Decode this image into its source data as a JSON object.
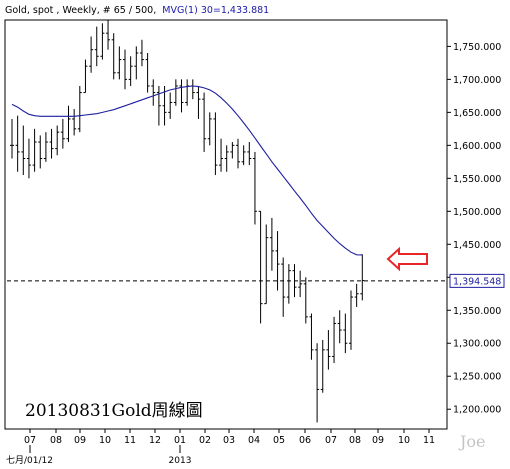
{
  "header": {
    "prefix": "Gold, spot , Weekly, # 65 / 500,",
    "indicator": "MVG(1) 30=1,433.881"
  },
  "annotation": "20130831Gold周線圖",
  "watermark": "Joe",
  "colors": {
    "bars": "#000000",
    "ma_line": "#1f1fa0",
    "arrow": "#e8262a",
    "grid": "#000000"
  },
  "chart_data": {
    "type": "ohlc",
    "title": "Gold, spot , Weekly, # 65 / 500,",
    "ylim": [
      1170,
      1790
    ],
    "y_ticks": [
      "1,200.000",
      "1,250.000",
      "1,300.000",
      "1,350.000",
      "1,400.000",
      "1,450.000",
      "1,500.000",
      "1,550.000",
      "1,600.000",
      "1,650.000",
      "1,700.000",
      "1,750.000"
    ],
    "y_tick_values": [
      1200,
      1250,
      1300,
      1350,
      1400,
      1450,
      1500,
      1550,
      1600,
      1650,
      1700,
      1750
    ],
    "x_ticks": [
      "07",
      "08",
      "09",
      "10",
      "11",
      "12",
      "01",
      "02",
      "03",
      "04",
      "05",
      "06",
      "07",
      "08",
      "09",
      "10",
      "11"
    ],
    "x_sublabels": [
      "七月/01/12",
      "2013"
    ],
    "current_price_label": "1,394.548",
    "current_price": 1394.548,
    "moving_average": {
      "name": "MVG(1) 30",
      "last_value": 1433.881
    },
    "bars": [
      [
        1600,
        1640,
        1580,
        1600
      ],
      [
        1600,
        1645,
        1560,
        1590
      ],
      [
        1590,
        1630,
        1555,
        1580
      ],
      [
        1580,
        1610,
        1550,
        1570
      ],
      [
        1570,
        1625,
        1560,
        1605
      ],
      [
        1605,
        1615,
        1565,
        1580
      ],
      [
        1580,
        1620,
        1575,
        1605
      ],
      [
        1605,
        1625,
        1580,
        1595
      ],
      [
        1595,
        1630,
        1585,
        1620
      ],
      [
        1620,
        1640,
        1595,
        1610
      ],
      [
        1610,
        1660,
        1605,
        1640
      ],
      [
        1640,
        1655,
        1615,
        1625
      ],
      [
        1625,
        1690,
        1620,
        1680
      ],
      [
        1680,
        1730,
        1680,
        1720
      ],
      [
        1720,
        1765,
        1710,
        1745
      ],
      [
        1745,
        1780,
        1720,
        1735
      ],
      [
        1735,
        1785,
        1730,
        1770
      ],
      [
        1770,
        1790,
        1745,
        1760
      ],
      [
        1760,
        1770,
        1700,
        1710
      ],
      [
        1710,
        1750,
        1700,
        1730
      ],
      [
        1730,
        1745,
        1685,
        1700
      ],
      [
        1700,
        1735,
        1690,
        1720
      ],
      [
        1720,
        1750,
        1700,
        1740
      ],
      [
        1740,
        1760,
        1720,
        1730
      ],
      [
        1730,
        1740,
        1680,
        1690
      ],
      [
        1690,
        1700,
        1660,
        1680
      ],
      [
        1680,
        1690,
        1630,
        1660
      ],
      [
        1660,
        1690,
        1630,
        1650
      ],
      [
        1650,
        1680,
        1640,
        1665
      ],
      [
        1665,
        1700,
        1660,
        1690
      ],
      [
        1690,
        1700,
        1650,
        1665
      ],
      [
        1665,
        1700,
        1660,
        1690
      ],
      [
        1690,
        1700,
        1670,
        1680
      ],
      [
        1680,
        1690,
        1640,
        1670
      ],
      [
        1670,
        1680,
        1590,
        1610
      ],
      [
        1610,
        1650,
        1600,
        1640
      ],
      [
        1640,
        1650,
        1555,
        1570
      ],
      [
        1570,
        1610,
        1560,
        1580
      ],
      [
        1580,
        1600,
        1560,
        1590
      ],
      [
        1590,
        1605,
        1580,
        1600
      ],
      [
        1600,
        1610,
        1565,
        1575
      ],
      [
        1575,
        1600,
        1570,
        1590
      ],
      [
        1590,
        1605,
        1570,
        1580
      ],
      [
        1580,
        1590,
        1480,
        1500
      ],
      [
        1500,
        1500,
        1330,
        1360
      ],
      [
        1360,
        1480,
        1360,
        1460
      ],
      [
        1460,
        1490,
        1410,
        1440
      ],
      [
        1440,
        1470,
        1380,
        1420
      ],
      [
        1420,
        1430,
        1340,
        1370
      ],
      [
        1370,
        1420,
        1360,
        1410
      ],
      [
        1410,
        1420,
        1370,
        1385
      ],
      [
        1385,
        1410,
        1370,
        1390
      ],
      [
        1390,
        1400,
        1330,
        1340
      ],
      [
        1340,
        1345,
        1275,
        1290
      ],
      [
        1290,
        1300,
        1180,
        1230
      ],
      [
        1230,
        1305,
        1225,
        1290
      ],
      [
        1290,
        1320,
        1260,
        1280
      ],
      [
        1280,
        1340,
        1270,
        1330
      ],
      [
        1330,
        1350,
        1300,
        1320
      ],
      [
        1320,
        1345,
        1285,
        1300
      ],
      [
        1300,
        1380,
        1290,
        1370
      ],
      [
        1370,
        1390,
        1355,
        1375
      ],
      [
        1375,
        1435,
        1365,
        1395
      ]
    ],
    "ma_values": [
      1662,
      1658,
      1652,
      1647,
      1645,
      1644,
      1644,
      1644,
      1644,
      1644,
      1644,
      1644,
      1645,
      1646,
      1647,
      1648,
      1650,
      1652,
      1654,
      1657,
      1660,
      1663,
      1666,
      1669,
      1672,
      1675,
      1678,
      1681,
      1684,
      1686,
      1688,
      1689,
      1690,
      1689,
      1687,
      1684,
      1679,
      1672,
      1664,
      1655,
      1645,
      1634,
      1623,
      1611,
      1599,
      1587,
      1575,
      1564,
      1553,
      1542,
      1531,
      1520,
      1509,
      1497,
      1486,
      1477,
      1468,
      1459,
      1451,
      1444,
      1438,
      1434,
      1433.881
    ]
  }
}
